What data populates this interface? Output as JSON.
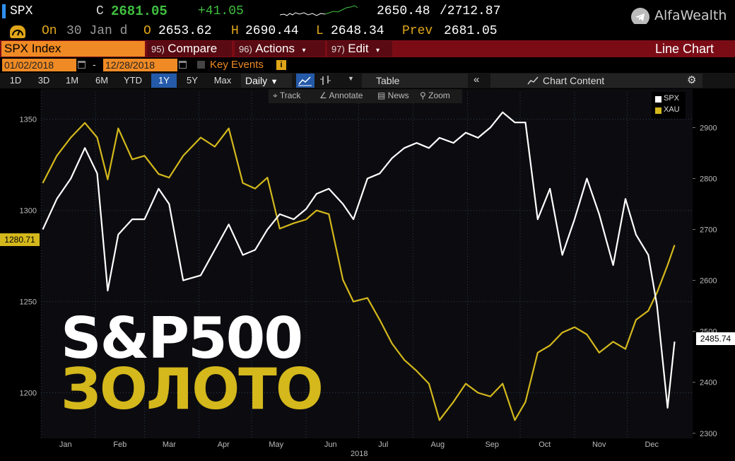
{
  "header": {
    "ticker": "SPX",
    "last_label": "C",
    "last": "2681.05",
    "change": "+41.05",
    "range_low": "2650.48",
    "range_high": "/2712.87",
    "on_label": "On",
    "date_line": "30 Jan d",
    "open_label": "O",
    "open": "2653.62",
    "high_label": "H",
    "high": "2690.44",
    "low_label": "L",
    "low": "2648.34",
    "prev_label": "Prev",
    "prev": "2681.05",
    "brand": "AlfaWealth"
  },
  "toolbar": {
    "security": "SPX Index",
    "compare_num": "95)",
    "compare": "Compare",
    "actions_num": "96)",
    "actions": "Actions",
    "edit_num": "97)",
    "edit": "Edit",
    "chart_type": "Line Chart"
  },
  "daterange": {
    "start": "01/02/2018",
    "sep": "-",
    "end": "12/28/2018",
    "key_events": "Key Events"
  },
  "ranges": [
    "1D",
    "3D",
    "1M",
    "6M",
    "YTD",
    "1Y",
    "5Y",
    "Max"
  ],
  "selected_range": "1Y",
  "period": "Daily",
  "table_label": "Table",
  "chart_content_label": "Chart Content",
  "tools": [
    "Track",
    "Annotate",
    "News",
    "Zoom"
  ],
  "overlay": {
    "line1": "S&P500",
    "line2": "ЗОЛОТО"
  },
  "colors": {
    "spx": "#ffffff",
    "xau": "#d4b81c",
    "background": "#000000",
    "plot": "#0c0c10",
    "accent": "#245aa8",
    "toolbar": "#7b0c16",
    "up": "#3fbf3f"
  },
  "chart_data": {
    "type": "line",
    "x": [
      "2018-01-02",
      "2018-01-10",
      "2018-01-18",
      "2018-01-26",
      "2018-02-02",
      "2018-02-08",
      "2018-02-14",
      "2018-02-22",
      "2018-03-01",
      "2018-03-09",
      "2018-03-15",
      "2018-03-23",
      "2018-04-02",
      "2018-04-10",
      "2018-04-18",
      "2018-04-26",
      "2018-05-03",
      "2018-05-10",
      "2018-05-17",
      "2018-05-25",
      "2018-06-01",
      "2018-06-07",
      "2018-06-14",
      "2018-06-22",
      "2018-06-28",
      "2018-07-06",
      "2018-07-13",
      "2018-07-20",
      "2018-07-27",
      "2018-08-03",
      "2018-08-10",
      "2018-08-16",
      "2018-08-24",
      "2018-08-31",
      "2018-09-07",
      "2018-09-14",
      "2018-09-21",
      "2018-09-28",
      "2018-10-04",
      "2018-10-11",
      "2018-10-18",
      "2018-10-25",
      "2018-11-01",
      "2018-11-08",
      "2018-11-15",
      "2018-11-23",
      "2018-11-30",
      "2018-12-06",
      "2018-12-13",
      "2018-12-18",
      "2018-12-24",
      "2018-12-28"
    ],
    "series": [
      {
        "name": "SPX",
        "axis": "right",
        "values": [
          2700,
          2760,
          2800,
          2860,
          2810,
          2580,
          2690,
          2720,
          2720,
          2780,
          2750,
          2600,
          2610,
          2660,
          2710,
          2650,
          2660,
          2700,
          2730,
          2720,
          2740,
          2770,
          2780,
          2750,
          2720,
          2800,
          2810,
          2840,
          2860,
          2870,
          2860,
          2880,
          2870,
          2890,
          2880,
          2900,
          2930,
          2910,
          2910,
          2720,
          2780,
          2650,
          2720,
          2800,
          2730,
          2630,
          2760,
          2690,
          2650,
          2550,
          2350,
          2480
        ]
      },
      {
        "name": "XAU",
        "axis": "left",
        "values": [
          1315,
          1330,
          1340,
          1348,
          1340,
          1317,
          1345,
          1328,
          1330,
          1320,
          1318,
          1330,
          1340,
          1335,
          1345,
          1315,
          1312,
          1318,
          1290,
          1293,
          1295,
          1300,
          1298,
          1262,
          1250,
          1252,
          1240,
          1227,
          1218,
          1212,
          1205,
          1185,
          1195,
          1205,
          1200,
          1198,
          1205,
          1185,
          1195,
          1222,
          1226,
          1233,
          1236,
          1232,
          1222,
          1228,
          1224,
          1240,
          1245,
          1255,
          1270,
          1281
        ]
      }
    ],
    "left_axis": {
      "ticks": [
        1200,
        1250,
        1300,
        1350
      ],
      "range": [
        1175,
        1365
      ]
    },
    "right_axis": {
      "ticks": [
        2300,
        2400,
        2500,
        2600,
        2700,
        2800,
        2900
      ],
      "range": [
        2290,
        2970
      ]
    },
    "x_tick_labels": [
      "Jan",
      "Feb",
      "Mar",
      "Apr",
      "May",
      "Jun",
      "Jul",
      "Aug",
      "Sep",
      "Oct",
      "Nov",
      "Dec"
    ],
    "xlabel": "2018",
    "legend": [
      "SPX",
      "XAU"
    ],
    "legend_position": "top-right",
    "last_value_left": "1280.71",
    "last_value_right": "2485.74",
    "grid": true
  }
}
